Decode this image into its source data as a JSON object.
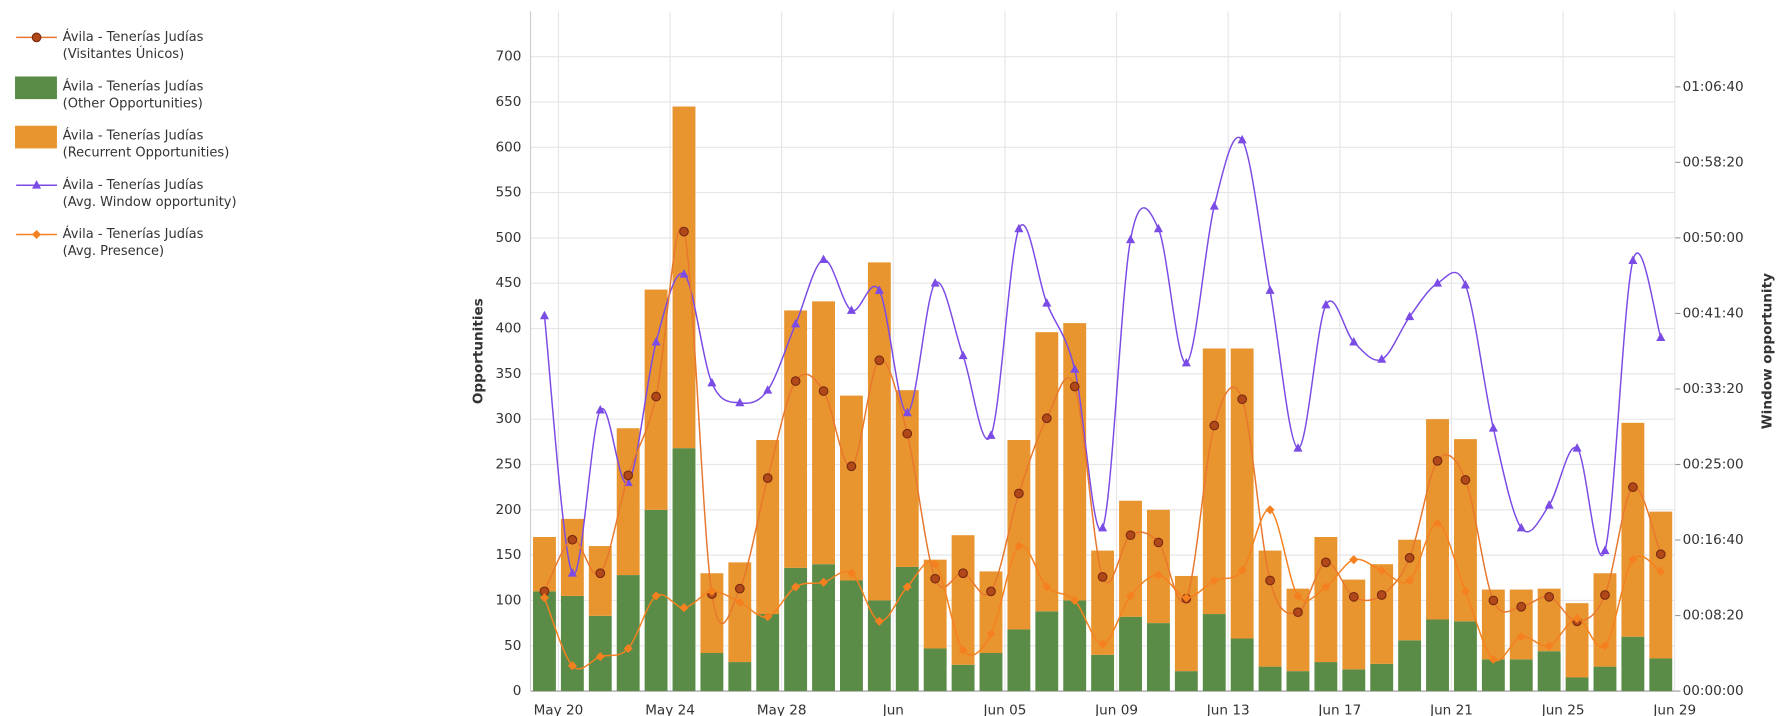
{
  "chart_data": {
    "type": "bar",
    "stacked": true,
    "grid": true,
    "y_label": "Opportunities",
    "y2_label": "Window opportunity",
    "x": [
      0.5,
      1.5,
      2.5,
      3.5,
      4.5,
      5.5,
      6.5,
      7.5,
      8.5,
      9.5,
      10.5,
      11.5,
      12.5,
      13.5,
      14.5,
      15.5,
      16.5,
      17.5,
      18.5,
      19.5,
      20.5,
      21.5,
      22.5,
      23.5,
      24.5,
      25.5,
      26.5,
      27.5,
      28.5,
      29.5,
      30.5,
      31.5,
      32.5,
      33.5,
      34.5,
      35.5,
      36.5,
      37.5,
      38.5,
      39.5,
      40.5
    ],
    "xlim": [
      0,
      41
    ],
    "xticks": [
      {
        "value": 1,
        "label": "May 20"
      },
      {
        "value": 5,
        "label": "May 24"
      },
      {
        "value": 9,
        "label": "May 28"
      },
      {
        "value": 13,
        "label": "Jun"
      },
      {
        "value": 17,
        "label": "Jun 05"
      },
      {
        "value": 21,
        "label": "Jun 09"
      },
      {
        "value": 25,
        "label": "Jun 13"
      },
      {
        "value": 29,
        "label": "Jun 17"
      },
      {
        "value": 33,
        "label": "Jun 21"
      },
      {
        "value": 37,
        "label": "Jun 25"
      },
      {
        "value": 41,
        "label": "Jun 29"
      }
    ],
    "ylim": [
      0,
      750
    ],
    "yticks": [
      0,
      50,
      100,
      150,
      200,
      250,
      300,
      350,
      400,
      450,
      500,
      550,
      600,
      650,
      700
    ],
    "y2lim": [
      0,
      4500
    ],
    "y2ticks": [
      {
        "value": 0,
        "label": "00:00:00"
      },
      {
        "value": 500,
        "label": "00:08:20"
      },
      {
        "value": 1000,
        "label": "00:16:40"
      },
      {
        "value": 1500,
        "label": "00:25:00"
      },
      {
        "value": 2000,
        "label": "00:33:20"
      },
      {
        "value": 2500,
        "label": "00:41:40"
      },
      {
        "value": 3000,
        "label": "00:50:00"
      },
      {
        "value": 3500,
        "label": "00:58:20"
      },
      {
        "value": 4000,
        "label": "01:06:40"
      }
    ],
    "series": [
      {
        "name": "Ávila - Tenerías Judías\n(Visitantes Únicos)",
        "type": "line",
        "marker": "circle",
        "color": "#e8772e",
        "marker_color": "#b0481a",
        "values": [
          110,
          167,
          130,
          238,
          325,
          507,
          107,
          113,
          235,
          342,
          331,
          248,
          365,
          284,
          124,
          130,
          110,
          218,
          301,
          336,
          126,
          172,
          164,
          102,
          293,
          322,
          122,
          87,
          142,
          104,
          106,
          147,
          254,
          233,
          100,
          93,
          104,
          77,
          106,
          225,
          151
        ]
      },
      {
        "name": "Ávila - Tenerías Judías\n(Other Opportunities)",
        "type": "bar",
        "color": "#5a8c47",
        "values": [
          110,
          105,
          83,
          128,
          200,
          268,
          42,
          32,
          85,
          136,
          140,
          122,
          100,
          137,
          47,
          29,
          42,
          68,
          88,
          100,
          40,
          82,
          75,
          22,
          85,
          58,
          27,
          22,
          32,
          24,
          30,
          56,
          79,
          77,
          35,
          35,
          44,
          15,
          27,
          60,
          36
        ]
      },
      {
        "name": "Ávila - Tenerías Judías\n(Recurrent Opportunities)",
        "type": "bar",
        "color": "#e8952f",
        "values": [
          60,
          85,
          77,
          162,
          243,
          377,
          88,
          110,
          192,
          284,
          290,
          204,
          373,
          195,
          98,
          143,
          90,
          209,
          308,
          306,
          115,
          128,
          125,
          105,
          293,
          320,
          128,
          91,
          138,
          99,
          110,
          111,
          221,
          201,
          77,
          77,
          69,
          82,
          103,
          236,
          162
        ]
      },
      {
        "name": "Ávila - Tenerías Judías\n(Avg. Window opportunity)",
        "type": "line",
        "axis": "y2",
        "marker": "triangle",
        "color": "#7b4be6",
        "marker_color": "#7b4be6",
        "values": [
          2484,
          780,
          1860,
          1380,
          2310,
          2760,
          2040,
          1908,
          1992,
          2430,
          2856,
          2520,
          2652,
          1842,
          2700,
          2220,
          1692,
          3060,
          2568,
          2130,
          1080,
          2988,
          3060,
          2172,
          3210,
          3648,
          2652,
          1608,
          2556,
          2310,
          2196,
          2478,
          2700,
          2688,
          1740,
          1080,
          1230,
          1608,
          930,
          2850,
          2340
        ]
      },
      {
        "name": "Ávila - Tenerías Judías\n(Avg. Presence)",
        "type": "line",
        "axis": "y2",
        "marker": "diamond",
        "color": "#f5801f",
        "marker_color": "#f5801f",
        "values": [
          618,
          168,
          228,
          282,
          630,
          552,
          660,
          588,
          492,
          690,
          720,
          780,
          462,
          690,
          840,
          270,
          378,
          960,
          690,
          600,
          312,
          630,
          768,
          618,
          732,
          798,
          1200,
          630,
          690,
          870,
          798,
          732,
          1110,
          660,
          210,
          360,
          300,
          480,
          300,
          870,
          792
        ]
      }
    ]
  }
}
